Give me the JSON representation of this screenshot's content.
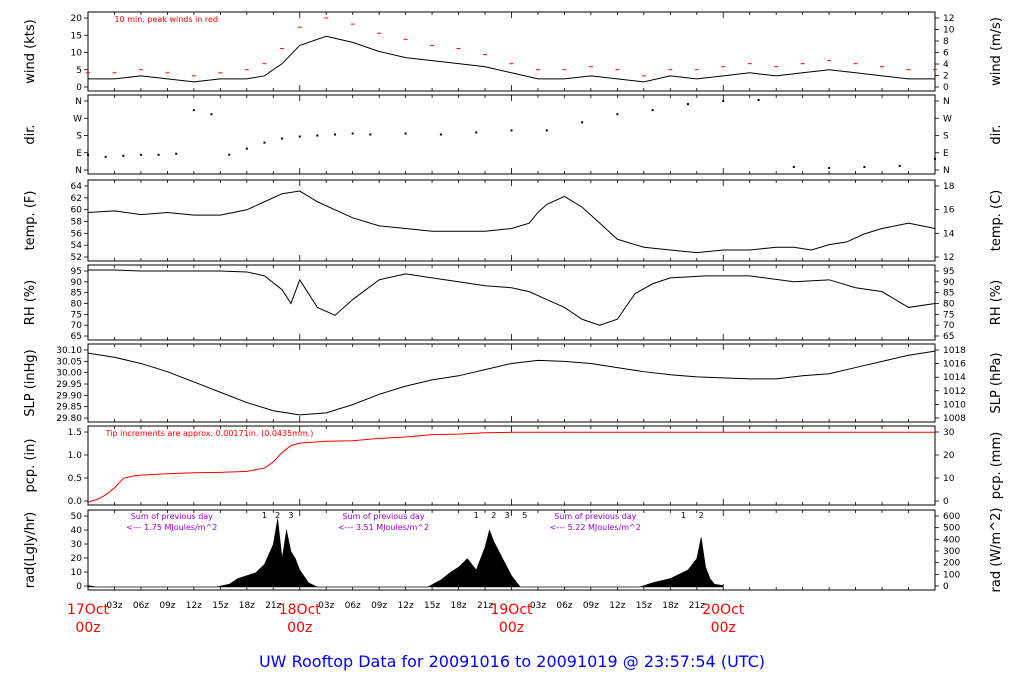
{
  "title": "UW Rooftop Data for 20091016  to  20091019 @ 23:57:54  (UTC)",
  "colors": {
    "red": "#ff0000",
    "purple": "#9900cc",
    "blue": "#0000ff",
    "black": "#000000"
  },
  "x_axis": {
    "hour_ticks": [
      "03z",
      "06z",
      "09z",
      "12z",
      "15z",
      "18z",
      "21z",
      "03z",
      "06z",
      "09z",
      "12z",
      "15z",
      "18z",
      "21z",
      "03z",
      "06z",
      "09z",
      "12z",
      "15z",
      "18z",
      "21z"
    ],
    "day_labels": [
      {
        "day": "17Oct",
        "time": "00z"
      },
      {
        "day": "18Oct",
        "time": "00z"
      },
      {
        "day": "19Oct",
        "time": "00z"
      },
      {
        "day": "20Oct",
        "time": "00z"
      }
    ]
  },
  "chart_data": [
    {
      "type": "line",
      "panel": "wind",
      "ylabel_left": "wind (kts)",
      "ylabel_right": "wind (m/s)",
      "left_ticks": [
        "0",
        "5",
        "10",
        "15",
        "20"
      ],
      "right_ticks": [
        "0",
        "2",
        "4",
        "6",
        "8",
        "10",
        "12"
      ],
      "ylim": [
        0,
        24
      ],
      "annotation": "10 min. peak winds in red",
      "series": [
        {
          "name": "wind",
          "color": "#000000",
          "x": [
            0,
            3,
            6,
            9,
            12,
            15,
            18,
            20,
            22,
            24,
            27,
            30,
            33,
            36,
            39,
            42,
            45,
            48,
            51,
            54,
            57,
            60,
            63,
            66,
            69,
            72,
            75,
            78,
            81,
            84,
            87,
            90,
            93,
            96
          ],
          "values": [
            3,
            3,
            4,
            3,
            2,
            3,
            3,
            4,
            8,
            14,
            17,
            15,
            12,
            10,
            9,
            8,
            7,
            5,
            3,
            3,
            4,
            3,
            2,
            4,
            3,
            4,
            5,
            4,
            5,
            6,
            5,
            4,
            3,
            3
          ]
        },
        {
          "name": "10 min. peak winds",
          "color": "#ff0000",
          "x": [
            0,
            3,
            6,
            9,
            12,
            15,
            18,
            20,
            22,
            24,
            27,
            30,
            33,
            36,
            39,
            42,
            45,
            48,
            51,
            54,
            57,
            60,
            63,
            66,
            69,
            72,
            75,
            78,
            81,
            84,
            87,
            90,
            93,
            96
          ],
          "values": [
            5,
            5,
            6,
            5,
            4,
            5,
            6,
            8,
            13,
            20,
            23,
            21,
            18,
            16,
            14,
            13,
            11,
            8,
            6,
            6,
            7,
            6,
            4,
            6,
            6,
            7,
            8,
            7,
            8,
            9,
            8,
            7,
            6,
            6
          ]
        }
      ]
    },
    {
      "type": "scatter",
      "panel": "dir.",
      "ylabel_left": "dir.",
      "ylabel_right": "dir.",
      "left_ticks": [
        "N",
        "E",
        "S",
        "W",
        "N"
      ],
      "right_ticks": [
        "N",
        "E",
        "S",
        "W",
        "N"
      ],
      "ylim": [
        0,
        360
      ],
      "series": [
        {
          "name": "dir",
          "x": [
            0,
            2,
            4,
            6,
            8,
            10,
            12,
            14,
            16,
            18,
            20,
            22,
            24,
            26,
            28,
            30,
            32,
            36,
            40,
            44,
            48,
            52,
            56,
            60,
            64,
            68,
            72,
            76,
            80,
            84,
            88,
            92,
            96
          ],
          "values": [
            80,
            70,
            75,
            80,
            80,
            85,
            300,
            280,
            80,
            110,
            140,
            160,
            170,
            175,
            180,
            185,
            180,
            185,
            180,
            190,
            200,
            200,
            240,
            280,
            300,
            330,
            345,
            350,
            20,
            15,
            20,
            25,
            60
          ]
        }
      ]
    },
    {
      "type": "line",
      "panel": "temp.",
      "ylabel_left": "temp. (F)",
      "ylabel_right": "temp. (C)",
      "left_ticks": [
        "52",
        "54",
        "56",
        "58",
        "60",
        "62",
        "64"
      ],
      "right_ticks": [
        "12",
        "14",
        "16",
        "18"
      ],
      "ylim": [
        51.5,
        65.5
      ],
      "series": [
        {
          "name": "temp",
          "x": [
            0,
            3,
            6,
            9,
            12,
            15,
            18,
            20,
            22,
            24,
            26,
            28,
            30,
            33,
            36,
            39,
            42,
            45,
            48,
            50,
            51,
            52,
            54,
            56,
            58,
            60,
            63,
            66,
            69,
            72,
            75,
            78,
            80,
            82,
            84,
            86,
            88,
            90,
            93,
            96
          ],
          "values": [
            60,
            60.3,
            59.6,
            60,
            59.5,
            59.5,
            60.5,
            62,
            63.5,
            64,
            62,
            60.5,
            59,
            57.5,
            57,
            56.5,
            56.5,
            56.5,
            57,
            58,
            60,
            61.5,
            63,
            61,
            58,
            55,
            53.5,
            53,
            52.5,
            53,
            53,
            53.5,
            53.5,
            53,
            54,
            54.5,
            56,
            57,
            58,
            57
          ]
        }
      ]
    },
    {
      "type": "line",
      "panel": "RH",
      "ylabel_left": "RH (%)",
      "ylabel_right": "RH (%)",
      "left_ticks": [
        "65",
        "70",
        "75",
        "80",
        "85",
        "90",
        "95"
      ],
      "right_ticks": [
        "65",
        "70",
        "75",
        "80",
        "85",
        "90",
        "95"
      ],
      "ylim": [
        63,
        98
      ],
      "series": [
        {
          "name": "RH",
          "x": [
            0,
            3,
            6,
            9,
            12,
            15,
            18,
            20,
            22,
            23,
            24,
            26,
            28,
            30,
            33,
            36,
            39,
            42,
            45,
            48,
            50,
            52,
            54,
            56,
            58,
            60,
            62,
            64,
            66,
            70,
            75,
            80,
            84,
            87,
            90,
            93,
            96
          ],
          "values": [
            97,
            97,
            96.5,
            96.5,
            96.5,
            96.5,
            96,
            94,
            87,
            80,
            92,
            78,
            74,
            82,
            92,
            95,
            93,
            91,
            89,
            88,
            86,
            82,
            78,
            72,
            69,
            72,
            85,
            90,
            93,
            94,
            94,
            91,
            92,
            88,
            86,
            78,
            80
          ]
        }
      ]
    },
    {
      "type": "line",
      "panel": "SLP",
      "ylabel_left": "SLP (inHg)",
      "ylabel_right": "SLP (hPa)",
      "left_ticks": [
        "29.80",
        "29.85",
        "29.90",
        "29.95",
        "30.00",
        "30.05",
        "30.10"
      ],
      "right_ticks": [
        "1008",
        "1010",
        "1012",
        "1014",
        "1016",
        "1018"
      ],
      "ylim": [
        29.77,
        30.12
      ],
      "series": [
        {
          "name": "SLP",
          "x": [
            0,
            3,
            6,
            9,
            12,
            15,
            18,
            21,
            24,
            27,
            30,
            33,
            36,
            39,
            42,
            45,
            48,
            51,
            54,
            57,
            60,
            63,
            66,
            69,
            72,
            75,
            78,
            81,
            84,
            87,
            90,
            93,
            96
          ],
          "values": [
            30.09,
            30.07,
            30.04,
            30.0,
            29.95,
            29.9,
            29.85,
            29.81,
            29.79,
            29.8,
            29.84,
            29.89,
            29.93,
            29.96,
            29.98,
            30.01,
            30.04,
            30.055,
            30.05,
            30.04,
            30.02,
            30.0,
            29.985,
            29.975,
            29.97,
            29.965,
            29.965,
            29.98,
            29.99,
            30.02,
            30.05,
            30.08,
            30.1
          ]
        }
      ]
    },
    {
      "type": "line",
      "panel": "pcp.",
      "ylabel_left": "pcp. (in)",
      "ylabel_right": "pcp. (mm)",
      "left_ticks": [
        "0.0",
        "0.5",
        "1.0",
        "1.5"
      ],
      "right_ticks": [
        "0",
        "10",
        "20",
        "30"
      ],
      "ylim": [
        0,
        1.55
      ],
      "annotation": "Tip increments are approx. 0.00171in. (0.0435mm.)",
      "series": [
        {
          "name": "pcp",
          "color": "#ff0000",
          "x": [
            0,
            1,
            2,
            3,
            4,
            5,
            6,
            9,
            12,
            15,
            18,
            20,
            21,
            22,
            23,
            24,
            27,
            30,
            33,
            36,
            39,
            42,
            45,
            48,
            96
          ],
          "values": [
            0,
            0.05,
            0.15,
            0.3,
            0.5,
            0.55,
            0.57,
            0.6,
            0.62,
            0.63,
            0.65,
            0.72,
            0.85,
            1.05,
            1.2,
            1.25,
            1.29,
            1.3,
            1.35,
            1.38,
            1.43,
            1.44,
            1.47,
            1.48,
            1.48
          ]
        }
      ]
    },
    {
      "type": "area",
      "panel": "rad",
      "ylabel_left": "rad(Lgly/hr)",
      "ylabel_right": "rad (W/m^2)",
      "left_ticks": [
        "0",
        "10",
        "20",
        "30",
        "40",
        "50"
      ],
      "right_ticks": [
        "0",
        "100",
        "200",
        "300",
        "400",
        "500",
        "600"
      ],
      "ylim": [
        0,
        52
      ],
      "annotations": [
        {
          "text": "Sum of previous day",
          "value": "<--- 1.75 MJoules/m^2"
        },
        {
          "text": "Sum of previous day",
          "value": "<--- 3.51 MJoules/m^2"
        },
        {
          "text": "Sum of previous day",
          "value": "<--- 5.22 MJoules/m^2"
        }
      ],
      "peak_markers": [
        "1",
        "2",
        "3",
        "1",
        "2",
        "3",
        "5",
        "1",
        "2"
      ],
      "series": [
        {
          "name": "rad",
          "x": [
            0,
            1,
            14.5,
            16,
            17,
            18,
            19,
            20,
            21,
            21.5,
            22,
            22.5,
            23,
            23.5,
            24,
            25,
            26,
            38.5,
            40,
            41,
            42,
            43,
            44,
            45,
            45.5,
            46,
            47,
            48,
            49,
            62.5,
            64,
            66,
            67,
            68,
            69,
            69.5,
            70,
            70.5,
            71,
            72
          ],
          "values": [
            1,
            0,
            0,
            2,
            6,
            8,
            10,
            16,
            30,
            48,
            20,
            40,
            25,
            20,
            12,
            3,
            0,
            0,
            5,
            10,
            14,
            20,
            12,
            28,
            40,
            32,
            20,
            8,
            0,
            0,
            3,
            6,
            9,
            12,
            20,
            35,
            14,
            6,
            2,
            1
          ]
        }
      ]
    }
  ]
}
